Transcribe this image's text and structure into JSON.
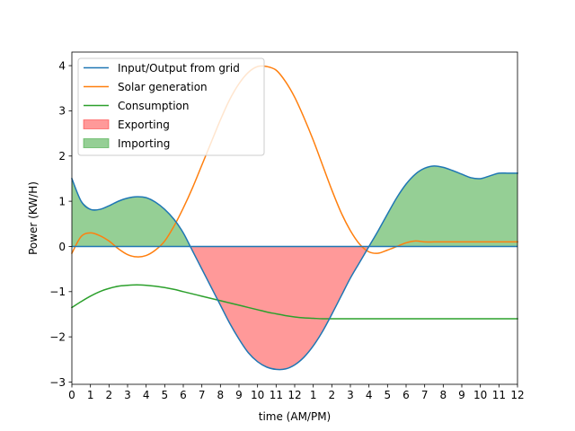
{
  "chart_data": {
    "type": "line",
    "title": "",
    "xlabel": "time (AM/PM)",
    "ylabel": "Power (KW/H)",
    "xlim": [
      0,
      24
    ],
    "ylim": [
      -3.05,
      4.3
    ],
    "x_ticks": [
      0,
      1,
      2,
      3,
      4,
      5,
      6,
      7,
      8,
      9,
      10,
      11,
      12,
      13,
      14,
      15,
      16,
      17,
      18,
      19,
      20,
      21,
      22,
      23,
      24
    ],
    "x_tick_labels": [
      "0",
      "1",
      "2",
      "3",
      "4",
      "5",
      "6",
      "7",
      "8",
      "9",
      "10",
      "11",
      "12",
      "1",
      "2",
      "3",
      "4",
      "5",
      "6",
      "7",
      "8",
      "9",
      "10",
      "11",
      "12"
    ],
    "y_ticks": [
      -3,
      -2,
      -1,
      0,
      1,
      2,
      3,
      4
    ],
    "y_tick_labels": [
      "−3",
      "−2",
      "−1",
      "0",
      "1",
      "2",
      "3",
      "4"
    ],
    "grid": false,
    "legend_position": "top-left",
    "x": [
      0,
      0.5,
      1,
      1.5,
      2,
      2.5,
      3,
      3.5,
      4,
      4.5,
      5,
      5.5,
      6,
      6.5,
      7,
      7.5,
      8,
      8.5,
      9,
      9.5,
      10,
      10.5,
      11,
      11.5,
      12,
      12.5,
      13,
      13.5,
      14,
      14.5,
      15,
      15.5,
      16,
      16.5,
      17,
      17.5,
      18,
      18.5,
      19,
      19.5,
      20,
      20.5,
      21,
      21.5,
      22,
      22.5,
      23,
      23.5,
      24
    ],
    "series": [
      {
        "name": "Input/Output from grid",
        "color": "#1f77b4",
        "values": [
          1.5,
          1.0,
          0.82,
          0.82,
          0.9,
          1.0,
          1.07,
          1.1,
          1.08,
          0.98,
          0.82,
          0.6,
          0.3,
          -0.1,
          -0.5,
          -0.9,
          -1.3,
          -1.7,
          -2.05,
          -2.35,
          -2.55,
          -2.67,
          -2.72,
          -2.71,
          -2.62,
          -2.45,
          -2.2,
          -1.88,
          -1.5,
          -1.1,
          -0.7,
          -0.35,
          0.0,
          0.35,
          0.72,
          1.08,
          1.38,
          1.6,
          1.73,
          1.78,
          1.75,
          1.68,
          1.6,
          1.52,
          1.5,
          1.56,
          1.62,
          1.62,
          1.62
        ]
      },
      {
        "name": "Solar generation",
        "color": "#ff7f0e",
        "values": [
          -0.15,
          0.22,
          0.3,
          0.24,
          0.12,
          -0.05,
          -0.18,
          -0.23,
          -0.2,
          -0.08,
          0.12,
          0.45,
          0.85,
          1.3,
          1.8,
          2.3,
          2.8,
          3.25,
          3.6,
          3.85,
          3.98,
          3.98,
          3.9,
          3.65,
          3.3,
          2.85,
          2.35,
          1.8,
          1.25,
          0.75,
          0.35,
          0.05,
          -0.12,
          -0.15,
          -0.08,
          0.0,
          0.08,
          0.12,
          0.1,
          0.1,
          0.1,
          0.1,
          0.1,
          0.1,
          0.1,
          0.1,
          0.1,
          0.1,
          0.1
        ]
      },
      {
        "name": "Consumption",
        "color": "#2ca02c",
        "values": [
          -1.35,
          -1.22,
          -1.1,
          -1.0,
          -0.93,
          -0.88,
          -0.86,
          -0.85,
          -0.86,
          -0.88,
          -0.91,
          -0.95,
          -1.0,
          -1.05,
          -1.1,
          -1.15,
          -1.2,
          -1.25,
          -1.3,
          -1.35,
          -1.4,
          -1.45,
          -1.49,
          -1.53,
          -1.56,
          -1.58,
          -1.59,
          -1.6,
          -1.6,
          -1.6,
          -1.6,
          -1.6,
          -1.6,
          -1.6,
          -1.6,
          -1.6,
          -1.6,
          -1.6,
          -1.6,
          -1.6,
          -1.6,
          -1.6,
          -1.6,
          -1.6,
          -1.6,
          -1.6,
          -1.6,
          -1.6,
          -1.6
        ]
      }
    ],
    "fills": [
      {
        "name": "Exporting",
        "color": "#ff0000",
        "opacity": 0.4,
        "where": "grid < 0"
      },
      {
        "name": "Importing",
        "color": "#2ca02c",
        "opacity": 0.5,
        "where": "grid > 0"
      }
    ]
  }
}
